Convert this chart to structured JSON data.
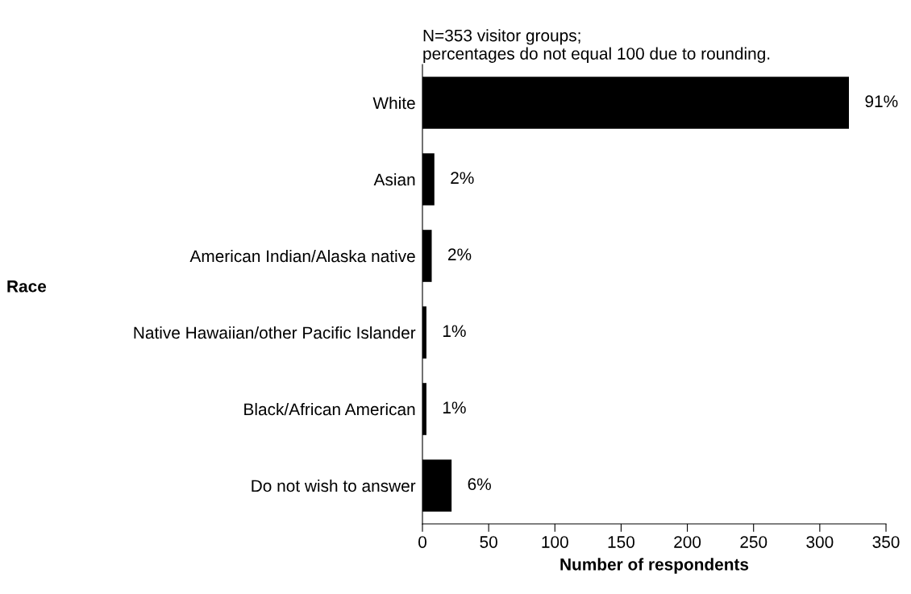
{
  "chart_data": {
    "type": "bar",
    "orientation": "horizontal",
    "categories": [
      "White",
      "Asian",
      "American Indian/Alaska native",
      "Native Hawaiian/other Pacific Islander",
      "Black/African American",
      "Do not wish to answer"
    ],
    "values": [
      322,
      9,
      7,
      3,
      3,
      22
    ],
    "color": "#000000",
    "xlabel": "Number of respondents",
    "xlim": [
      0,
      350
    ],
    "xticks": [
      0,
      50,
      100,
      150,
      200,
      250,
      300,
      350
    ],
    "annotations": [
      "N=353 visitor groups;\npercentages do not equal 100 due to rounding.",
      "Race",
      {
        "text": "91%",
        "x": 322,
        "y": "White"
      },
      {
        "text": "2%",
        "x": 9,
        "y": "Asian"
      },
      {
        "text": "2%",
        "x": 7,
        "y": "American Indian/Alaska native"
      },
      {
        "text": "1%",
        "x": 3,
        "y": "Native Hawaiian/other Pacific Islander"
      },
      {
        "text": "1%",
        "x": 3,
        "y": "Black/African American"
      },
      {
        "text": "6%",
        "x": 22,
        "y": "Do not wish to answer"
      }
    ],
    "grid": false,
    "legend": false
  }
}
